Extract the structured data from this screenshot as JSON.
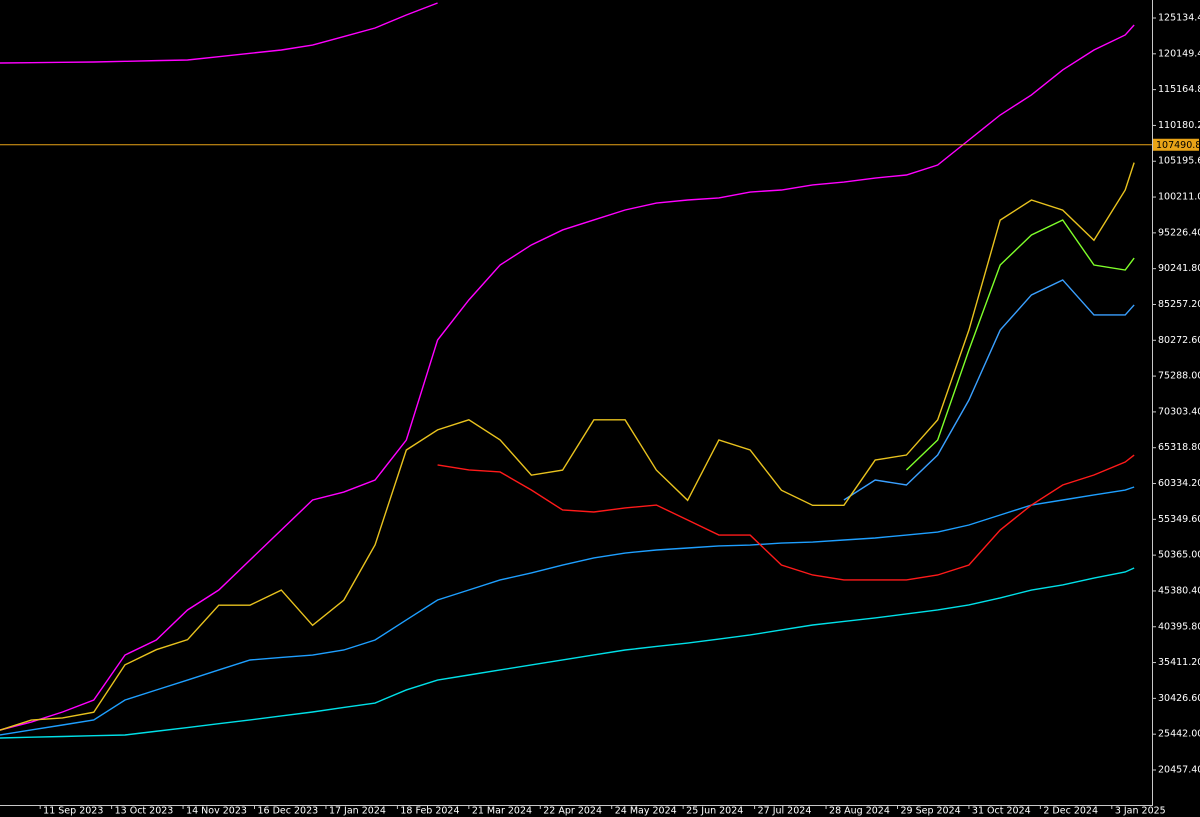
{
  "chart_data": {
    "type": "line",
    "x": [
      "2023-08-24",
      "2023-09-07",
      "2023-09-21",
      "2023-10-05",
      "2023-10-19",
      "2023-11-02",
      "2023-11-16",
      "2023-11-30",
      "2023-12-14",
      "2023-12-28",
      "2024-01-11",
      "2024-01-25",
      "2024-02-08",
      "2024-02-22",
      "2024-03-07",
      "2024-03-21",
      "2024-04-04",
      "2024-04-18",
      "2024-05-02",
      "2024-05-16",
      "2024-05-30",
      "2024-06-13",
      "2024-06-27",
      "2024-07-11",
      "2024-07-25",
      "2024-08-08",
      "2024-08-22",
      "2024-09-05",
      "2024-09-19",
      "2024-10-03",
      "2024-10-17",
      "2024-10-31",
      "2024-11-14",
      "2024-11-28",
      "2024-12-12",
      "2024-12-26",
      "2025-01-09",
      "2025-01-13"
    ],
    "series": [
      {
        "color": "#ff00ff",
        "values": [
          118870,
          118910,
          118960,
          119010,
          119100,
          119200,
          119290,
          119750,
          120220,
          120680,
          121370,
          122550,
          123740,
          125550,
          127220,
          null,
          null,
          null,
          null,
          null,
          null,
          null,
          null,
          null,
          null,
          null,
          null,
          null,
          null,
          null,
          null,
          null,
          null,
          null,
          null,
          null,
          null,
          null
        ]
      },
      {
        "color": "#ff00ff",
        "values": [
          26020,
          27130,
          28530,
          30200,
          36460,
          38550,
          42730,
          45510,
          49690,
          53860,
          58040,
          59150,
          60820,
          66390,
          80310,
          85880,
          90750,
          93540,
          95630,
          97020,
          98410,
          99380,
          99800,
          100080,
          100910,
          101190,
          101890,
          102300,
          102860,
          103280,
          104670,
          108150,
          111630,
          114420,
          117900,
          120680,
          122770,
          124160
        ]
      },
      {
        "color": "#1e9fff",
        "values": [
          25330,
          26030,
          26720,
          27420,
          30200,
          31590,
          32980,
          34380,
          35770,
          36120,
          36460,
          37160,
          38550,
          41340,
          44120,
          45510,
          46910,
          47880,
          48990,
          49970,
          50660,
          51080,
          51360,
          51640,
          51770,
          52050,
          52190,
          52470,
          52750,
          53160,
          53580,
          54560,
          55950,
          57340,
          58040,
          58740,
          59430,
          59850
        ]
      },
      {
        "color": "#00e0e8",
        "values": [
          24910,
          25020,
          25120,
          25230,
          25330,
          25850,
          26370,
          26900,
          27420,
          27980,
          28530,
          29160,
          29780,
          31600,
          32980,
          33680,
          34380,
          35080,
          35770,
          36470,
          37160,
          37650,
          38130,
          38690,
          39250,
          39950,
          40640,
          41130,
          41620,
          42180,
          42730,
          43430,
          44400,
          45510,
          46210,
          47180,
          48020,
          48580
        ]
      },
      {
        "color": "#ff1a1a",
        "values": [
          null,
          null,
          null,
          null,
          null,
          null,
          null,
          null,
          null,
          null,
          null,
          null,
          null,
          null,
          62920,
          62220,
          61940,
          59430,
          56650,
          56370,
          56930,
          57340,
          55250,
          53160,
          53160,
          48990,
          47600,
          46910,
          46910,
          46910,
          47600,
          48990,
          53860,
          57340,
          60130,
          61520,
          63330,
          64300
        ]
      },
      {
        "color": "#3aa0ff",
        "values": [
          null,
          null,
          null,
          null,
          null,
          null,
          null,
          null,
          null,
          null,
          null,
          null,
          null,
          null,
          null,
          null,
          null,
          null,
          null,
          null,
          null,
          null,
          null,
          null,
          null,
          null,
          null,
          58040,
          60820,
          60130,
          64300,
          71960,
          81700,
          86580,
          88670,
          83800,
          83800,
          85190
        ]
      },
      {
        "color": "#7fff2a",
        "values": [
          null,
          null,
          null,
          null,
          null,
          null,
          null,
          null,
          null,
          null,
          null,
          null,
          null,
          null,
          null,
          null,
          null,
          null,
          null,
          null,
          null,
          null,
          null,
          null,
          null,
          null,
          null,
          null,
          null,
          62220,
          66390,
          78920,
          90750,
          94930,
          97020,
          90750,
          90050,
          91720
        ]
      },
      {
        "color": "#e8c21e",
        "values": [
          26000,
          27400,
          27700,
          28500,
          35100,
          37200,
          38600,
          43400,
          43400,
          45500,
          40600,
          44100,
          51800,
          65000,
          67800,
          69200,
          66400,
          61500,
          62200,
          69200,
          69200,
          62200,
          58000,
          66400,
          65000,
          59400,
          57300,
          57300,
          63600,
          64300,
          69200,
          81700,
          97000,
          99800,
          98400,
          94200,
          101200,
          105000
        ]
      }
    ],
    "xlim": [
      "2023-08-24",
      "2025-01-21"
    ],
    "ylim": [
      15584,
      127640
    ],
    "xticks": [
      {
        "value": "2023-09-11",
        "label": "11 Sep 2023"
      },
      {
        "value": "2023-10-13",
        "label": "13 Oct 2023"
      },
      {
        "value": "2023-11-14",
        "label": "14 Nov 2023"
      },
      {
        "value": "2023-12-16",
        "label": "16 Dec 2023"
      },
      {
        "value": "2024-01-17",
        "label": "17 Jan 2024"
      },
      {
        "value": "2024-02-18",
        "label": "18 Feb 2024"
      },
      {
        "value": "2024-03-21",
        "label": "21 Mar 2024"
      },
      {
        "value": "2024-04-22",
        "label": "22 Apr 2024"
      },
      {
        "value": "2024-05-24",
        "label": "24 May 2024"
      },
      {
        "value": "2024-06-25",
        "label": "25 Jun 2024"
      },
      {
        "value": "2024-07-27",
        "label": "27 Jul 2024"
      },
      {
        "value": "2024-08-28",
        "label": "28 Aug 2024"
      },
      {
        "value": "2024-09-29",
        "label": "29 Sep 2024"
      },
      {
        "value": "2024-10-31",
        "label": "31 Oct 2024"
      },
      {
        "value": "2024-12-02",
        "label": "2 Dec 2024"
      },
      {
        "value": "2025-01-03",
        "label": "3 Jan 2025"
      }
    ],
    "yticks": [
      {
        "value": 125134.4,
        "label": "125134.40"
      },
      {
        "value": 120149.4,
        "label": "120149.40"
      },
      {
        "value": 115164.8,
        "label": "115164.80"
      },
      {
        "value": 110180.2,
        "label": "110180.20"
      },
      {
        "value": 105195.6,
        "label": "105195.60"
      },
      {
        "value": 100211,
        "label": "100211.00"
      },
      {
        "value": 95226.4,
        "label": "95226.40"
      },
      {
        "value": 90241.8,
        "label": "90241.80"
      },
      {
        "value": 85257.2,
        "label": "85257.20"
      },
      {
        "value": 80272.6,
        "label": "80272.60"
      },
      {
        "value": 75288,
        "label": "75288.00"
      },
      {
        "value": 70303.4,
        "label": "70303.40"
      },
      {
        "value": 65318.8,
        "label": "65318.80"
      },
      {
        "value": 60334.2,
        "label": "60334.20"
      },
      {
        "value": 55349.6,
        "label": "55349.60"
      },
      {
        "value": 50365,
        "label": "50365.00"
      },
      {
        "value": 45380.4,
        "label": "45380.40"
      },
      {
        "value": 40395.8,
        "label": "40395.80"
      },
      {
        "value": 35411.2,
        "label": "35411.20"
      },
      {
        "value": 30426.6,
        "label": "30426.60"
      },
      {
        "value": 25442,
        "label": "25442.00"
      },
      {
        "value": 20457.4,
        "label": "20457.40"
      }
    ],
    "last_price": {
      "value": 107490.8,
      "label": "107490.80"
    },
    "last_price_color": "#e8a317",
    "grid": false
  }
}
